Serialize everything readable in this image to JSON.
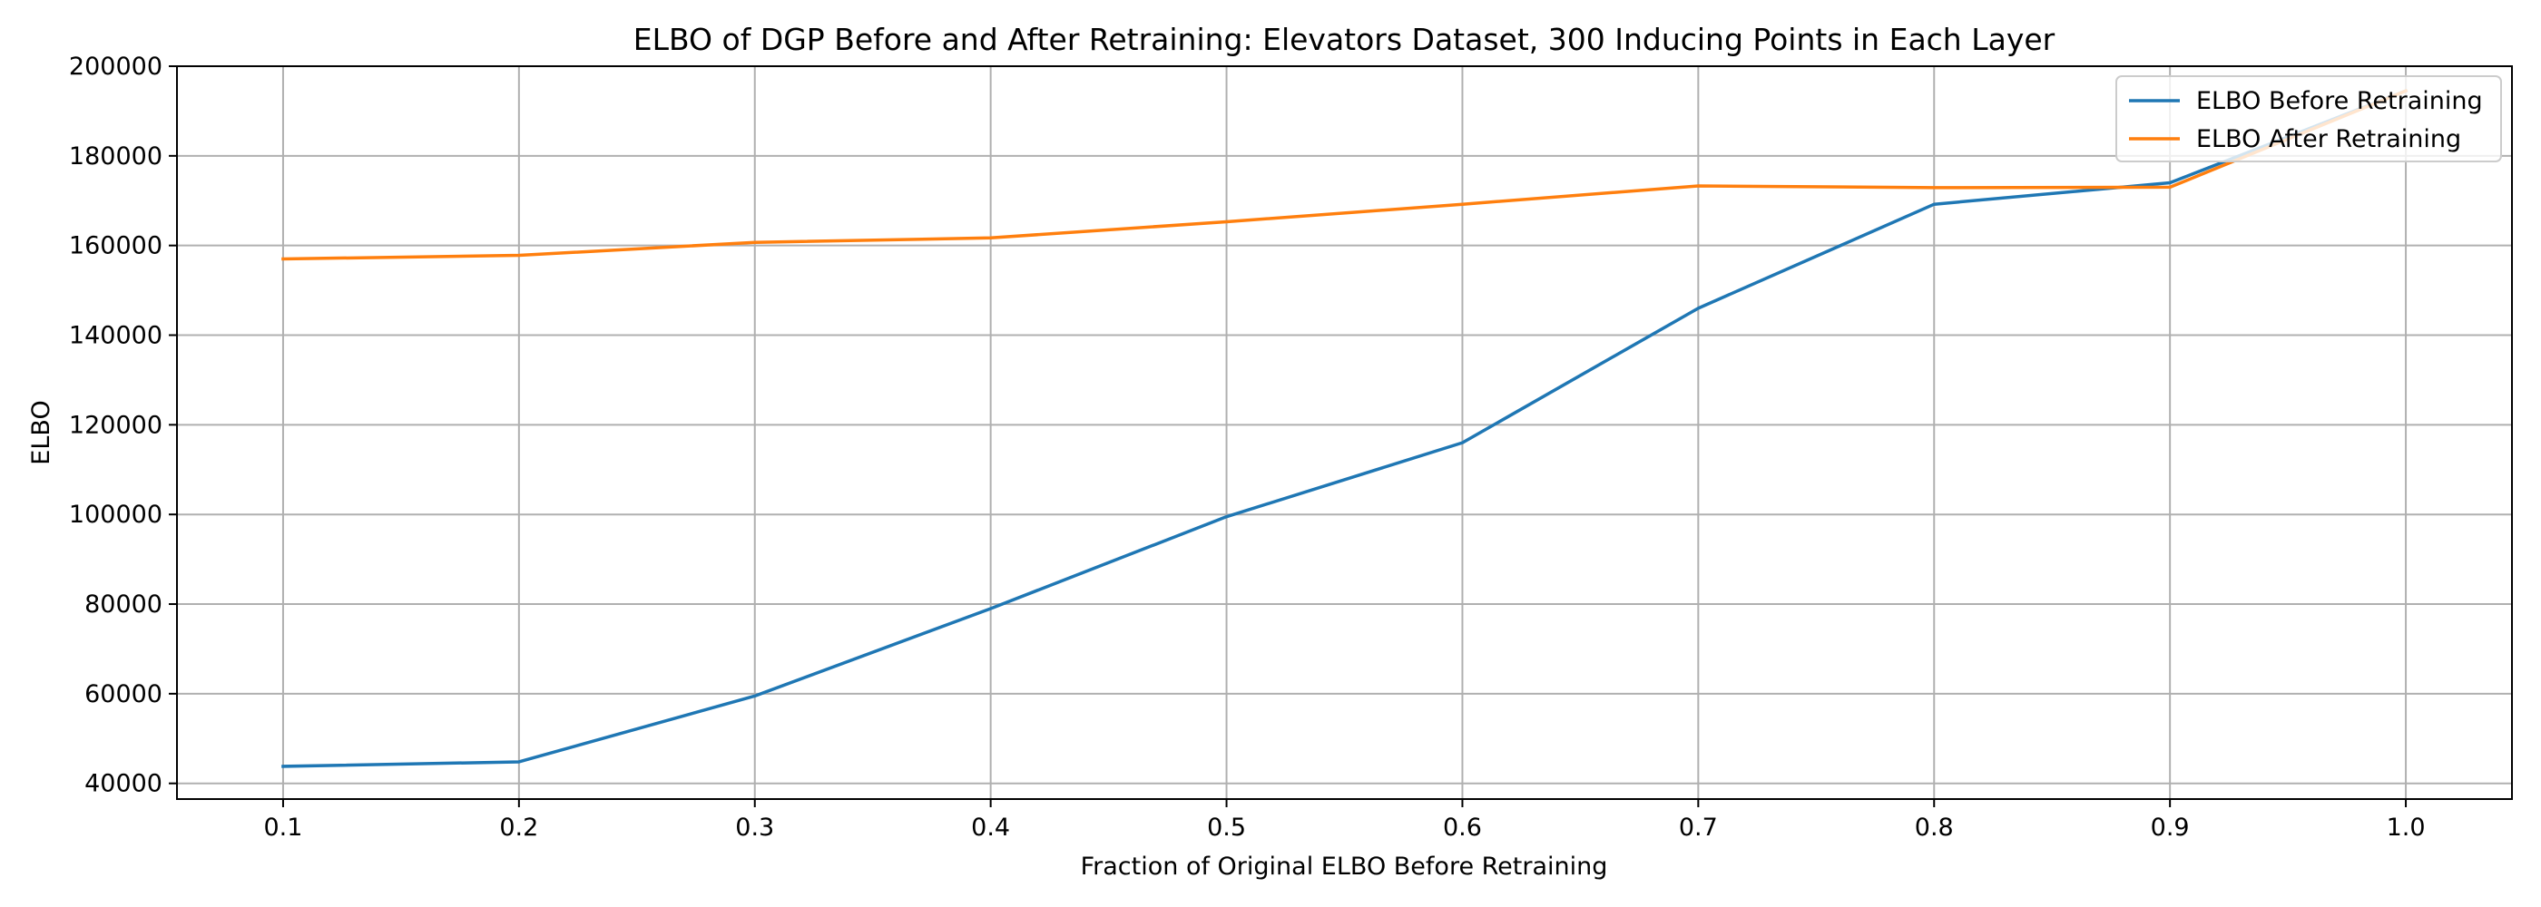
{
  "chart_data": {
    "type": "line",
    "title": "ELBO of DGP Before and After Retraining: Elevators Dataset, 300 Inducing Points in Each Layer",
    "xlabel": "Fraction of Original ELBO Before Retraining",
    "ylabel": "ELBO",
    "x": [
      0.1,
      0.2,
      0.3,
      0.4,
      0.5,
      0.6,
      0.7,
      0.8,
      0.9,
      1.0
    ],
    "xlim": [
      0.055,
      1.045
    ],
    "ylim": [
      36500,
      200000
    ],
    "x_ticks": [
      "0.1",
      "0.2",
      "0.3",
      "0.4",
      "0.5",
      "0.6",
      "0.7",
      "0.8",
      "0.9",
      "1.0"
    ],
    "y_ticks": [
      "40000",
      "60000",
      "80000",
      "100000",
      "120000",
      "140000",
      "160000",
      "180000",
      "200000"
    ],
    "grid": true,
    "legend_position": "top-right",
    "series": [
      {
        "name": "ELBO Before Retraining",
        "color": "#1f77b4",
        "values": [
          43800,
          44800,
          59500,
          79000,
          99500,
          116000,
          146000,
          169200,
          174000,
          194500
        ]
      },
      {
        "name": "ELBO After Retraining",
        "color": "#ff7f0e",
        "values": [
          157000,
          157800,
          160700,
          161700,
          165300,
          169200,
          173300,
          172900,
          173000,
          194500
        ]
      }
    ]
  }
}
